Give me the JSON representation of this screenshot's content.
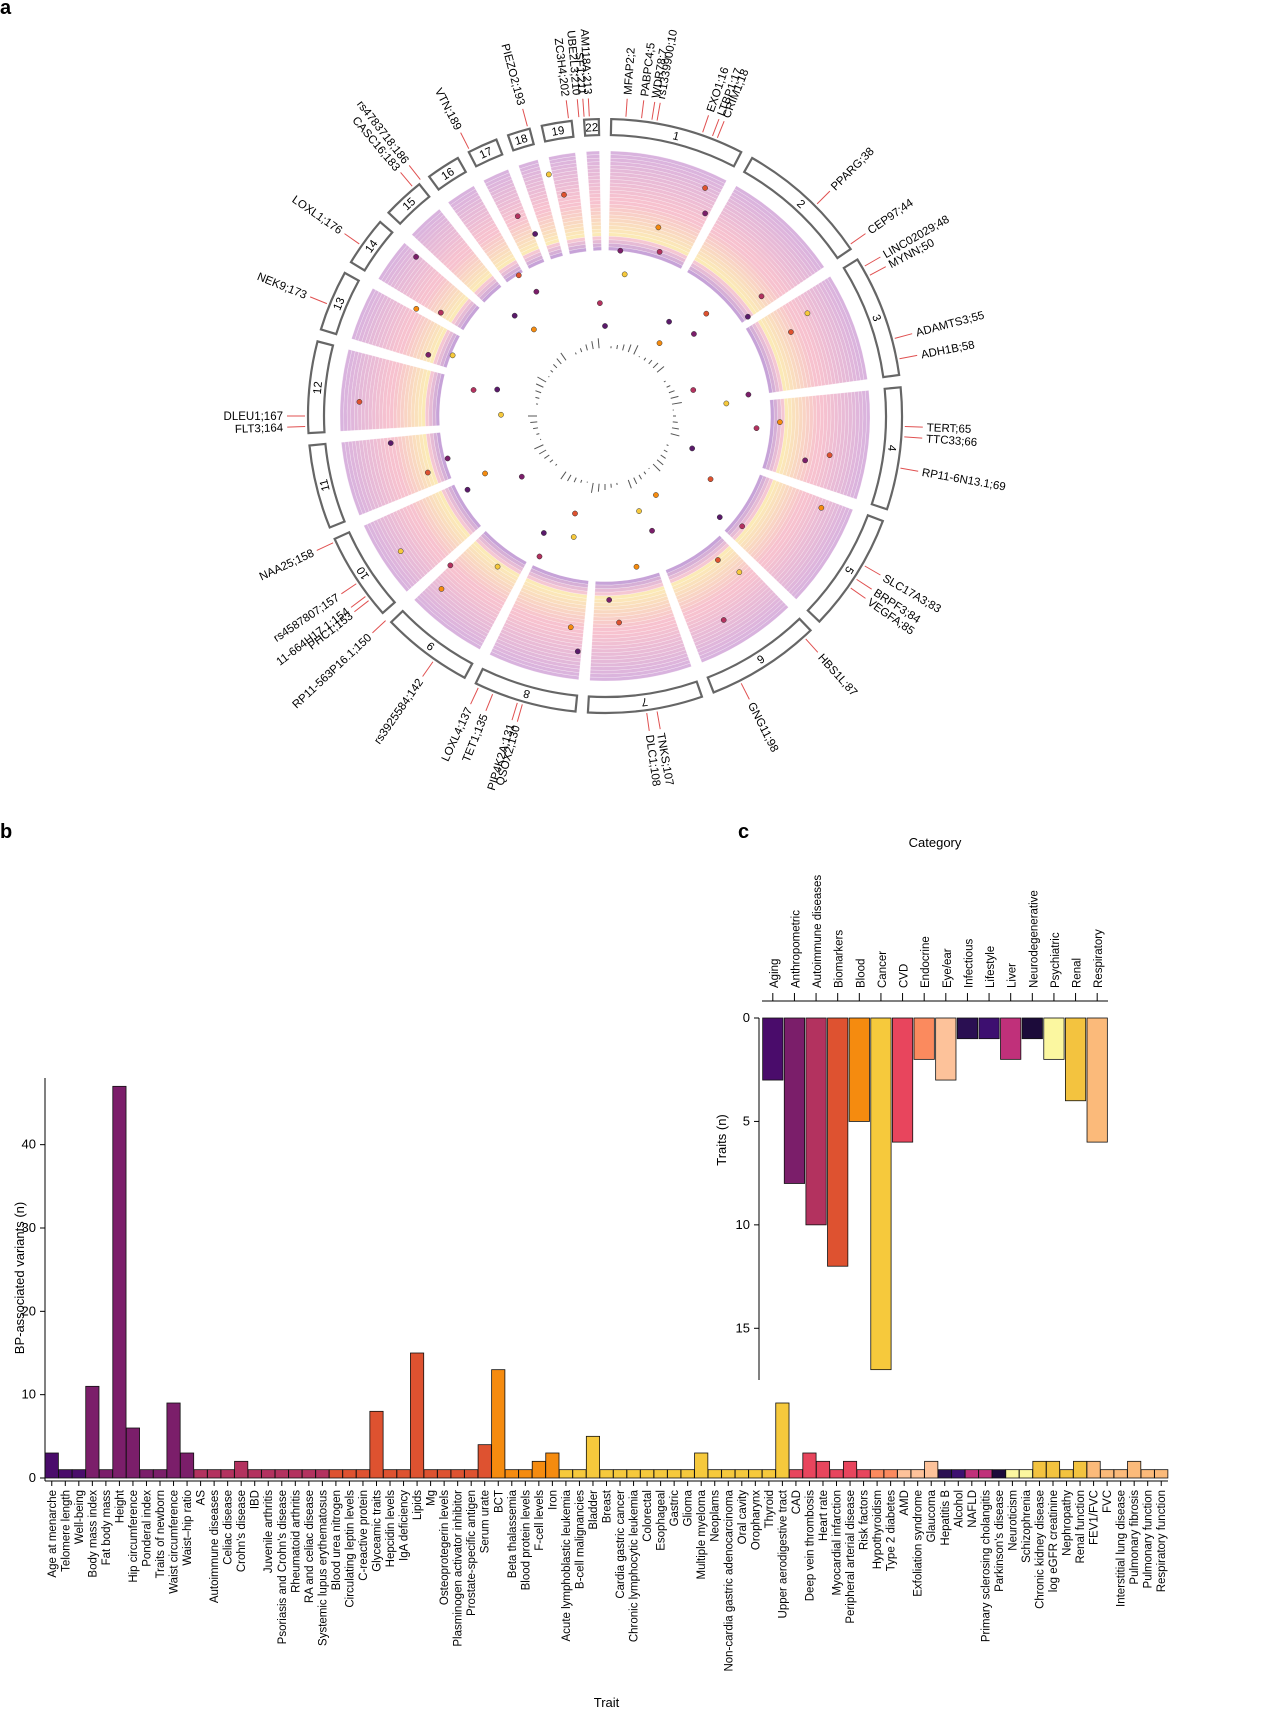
{
  "panels": {
    "a": "a",
    "b": "b",
    "c": "c"
  },
  "chart_data": [
    {
      "type": "circos",
      "panel": "a",
      "chromosomes": [
        "1",
        "2",
        "3",
        "4",
        "5",
        "6",
        "7",
        "8",
        "9",
        "10",
        "11",
        "12",
        "13",
        "14",
        "15",
        "16",
        "17",
        "18",
        "19",
        "22"
      ],
      "loci": [
        "rs1339900;10",
        "EXO1;16",
        "LTBP1;17",
        "CRIM1;18",
        "PPARG;38",
        "CEP97;44",
        "LINC02029;48",
        "MYNN;50",
        "ADAMTS3;55",
        "ADH1B;58",
        "TERT;65",
        "TTC33;66",
        "RP11-6N13.1;69",
        "SLC17A3;83",
        "BRPF3;84",
        "VEGFA;85",
        "HBS1L;87",
        "GNG11;98",
        "TNKS;107",
        "DLC1;108",
        "QSOX2;130",
        "PIP4K2A;131",
        "TET1;135",
        "LOXL4;137",
        "rs3925584;142",
        "RP11-563P16.1;150",
        "PHC1;153",
        "11-664H17.1;154",
        "rs4587807;157",
        "NAA25;158",
        "FLT3;164",
        "DLEU1;167",
        "NEK9;173",
        "LOXL1;176",
        "CASC16;183",
        "rs4783718;186",
        "VTN;189",
        "PIEZO2;193",
        "ZC3H4;202",
        "UBE2L3;210",
        "SF1;211",
        "AM118A;213",
        "MFAP2;2",
        "PABPC4;5",
        "WDR78;7"
      ]
    },
    {
      "type": "bar",
      "panel": "b",
      "xlabel": "Trait",
      "ylabel": "BP-associated variants (n)",
      "ylim": [
        0,
        48
      ],
      "yticks": [
        0,
        10,
        20,
        30,
        40
      ],
      "categories": [
        "Age at menarche",
        "Telomere length",
        "Well-being",
        "Body mass index",
        "Fat body mass",
        "Height",
        "Hip circumference",
        "Ponderal index",
        "Traits of newborn",
        "Waist circumference",
        "Waist–hip ratio",
        "AS",
        "Autoimmune diseases",
        "Celiac disease",
        "Crohn's disease",
        "IBD",
        "Juvenile arthritis",
        "Psoriasis and Crohn's disease",
        "Rheumatoid arthritis",
        "RA and celiac disease",
        "Systemic lupus erythematosus",
        "Blood urea nitrogen",
        "Circulating leptin levels",
        "C-reactive protein",
        "Glyceamic traits",
        "Hepcidin levels",
        "IgA deficiency",
        "Lipids",
        "Mg",
        "Osteoprotegerin levels",
        "Plasminogen activator inhibitor",
        "Prostate-specific antigen",
        "Serum urate",
        "BCT",
        "Beta thalassemia",
        "Blood protein levels",
        "F-cell levels",
        "Iron",
        "Acute lymphoblastic leukemia",
        "B-cell malignancies",
        "Bladder",
        "Breast",
        "Cardia gastric cancer",
        "Chronic lymphocytic leukemia",
        "Colorectal",
        "Esophageal",
        "Gastric",
        "Glioma",
        "Multiple myeloma",
        "Neoplams",
        "Non-cardia gastric adenocarcinoma",
        "Oral cavity",
        "Oropharynx",
        "Thyroid",
        "Upper aerodigestive tract",
        "CAD",
        "Deep vein thrombosis",
        "Heart rate",
        "Myocardial infarction",
        "Peripheral arterial disease",
        "Risk factors",
        "Hypothyroidism",
        "Type 2 diabetes",
        "AMD",
        "Exfoliation syndrome",
        "Glaucoma",
        "Hepatitis B",
        "Alcohol",
        "NAFLD",
        "Primary sclerosing cholangitis",
        "Parkinson's disease",
        "Neuroticism",
        "Schizophrenia",
        "Chronic kidney disease",
        "log eGFR creatinine",
        "Nephropathy",
        "Renal function",
        "FEV1/FVC",
        "FVC",
        "Interstitial lung disease",
        "Pulmonary fibrosis",
        "Pulmonary function",
        "Respiratory function"
      ],
      "values": [
        3,
        1,
        1,
        11,
        1,
        47,
        6,
        1,
        1,
        9,
        3,
        1,
        1,
        1,
        2,
        1,
        1,
        1,
        1,
        1,
        1,
        1,
        1,
        1,
        8,
        1,
        1,
        15,
        1,
        1,
        1,
        1,
        4,
        13,
        1,
        1,
        2,
        3,
        1,
        1,
        5,
        1,
        1,
        1,
        1,
        1,
        1,
        1,
        3,
        1,
        1,
        1,
        1,
        1,
        9,
        1,
        3,
        2,
        1,
        2,
        1,
        1,
        1,
        1,
        1,
        2,
        1,
        1,
        1,
        1,
        1,
        1,
        1,
        2,
        2,
        1,
        2,
        2,
        1,
        1,
        2,
        1,
        1
      ],
      "colors": [
        "#4a0c6b",
        "#4a0c6b",
        "#4a0c6b",
        "#7b1e6a",
        "#7b1e6a",
        "#7b1e6a",
        "#7b1e6a",
        "#7b1e6a",
        "#7b1e6a",
        "#7b1e6a",
        "#7b1e6a",
        "#b3325f",
        "#b3325f",
        "#b3325f",
        "#b3325f",
        "#b3325f",
        "#b3325f",
        "#b3325f",
        "#b3325f",
        "#b3325f",
        "#b3325f",
        "#de5230",
        "#de5230",
        "#de5230",
        "#de5230",
        "#de5230",
        "#de5230",
        "#de5230",
        "#de5230",
        "#de5230",
        "#de5230",
        "#de5230",
        "#de5230",
        "#f58b0f",
        "#f58b0f",
        "#f58b0f",
        "#f58b0f",
        "#f58b0f",
        "#f6c93c",
        "#f6c93c",
        "#f6c93c",
        "#f6c93c",
        "#f6c93c",
        "#f6c93c",
        "#f6c93c",
        "#f6c93c",
        "#f6c93c",
        "#f6c93c",
        "#f6c93c",
        "#f6c93c",
        "#f6c93c",
        "#f6c93c",
        "#f6c93c",
        "#f6c93c",
        "#f6c93c",
        "#e8455d",
        "#e8455d",
        "#e8455d",
        "#e8455d",
        "#e8455d",
        "#e8455d",
        "#fb8a5e",
        "#fb8a5e",
        "#fdc29a",
        "#fdc29a",
        "#fdc29a",
        "#2a0f52",
        "#3d0f70",
        "#c0307a",
        "#c0307a",
        "#1c0b3a",
        "#fbf7a0",
        "#fbf7a0",
        "#f3c33f",
        "#f3c33f",
        "#f3c33f",
        "#f3c33f",
        "#fbba7a",
        "#fbba7a",
        "#fbba7a",
        "#fbba7a",
        "#fbba7a",
        "#fbba7a"
      ]
    },
    {
      "type": "bar",
      "panel": "c",
      "title": "Category",
      "ylabel": "Traits (n)",
      "ylim": [
        0,
        17.5
      ],
      "yticks": [
        0,
        5,
        10,
        15
      ],
      "categories": [
        "Aging",
        "Anthropometric",
        "Autoimmune diseases",
        "Biomarkers",
        "Blood",
        "Cancer",
        "CVD",
        "Endocrine",
        "Eye/ear",
        "Infectious",
        "Lifestyle",
        "Liver",
        "Neurodegenerative",
        "Psychiatric",
        "Renal",
        "Respiratory"
      ],
      "values": [
        3,
        8,
        10,
        12,
        5,
        17,
        6,
        2,
        3,
        1,
        1,
        2,
        1,
        2,
        4,
        6
      ],
      "colors": [
        "#4a0c6b",
        "#7b1e6a",
        "#b3325f",
        "#de5230",
        "#f58b0f",
        "#f6c93c",
        "#e8455d",
        "#fb8a5e",
        "#fdc29a",
        "#2a0f52",
        "#3d0f70",
        "#c0307a",
        "#1c0b3a",
        "#fbf7a0",
        "#f3c33f",
        "#fbba7a"
      ]
    }
  ]
}
